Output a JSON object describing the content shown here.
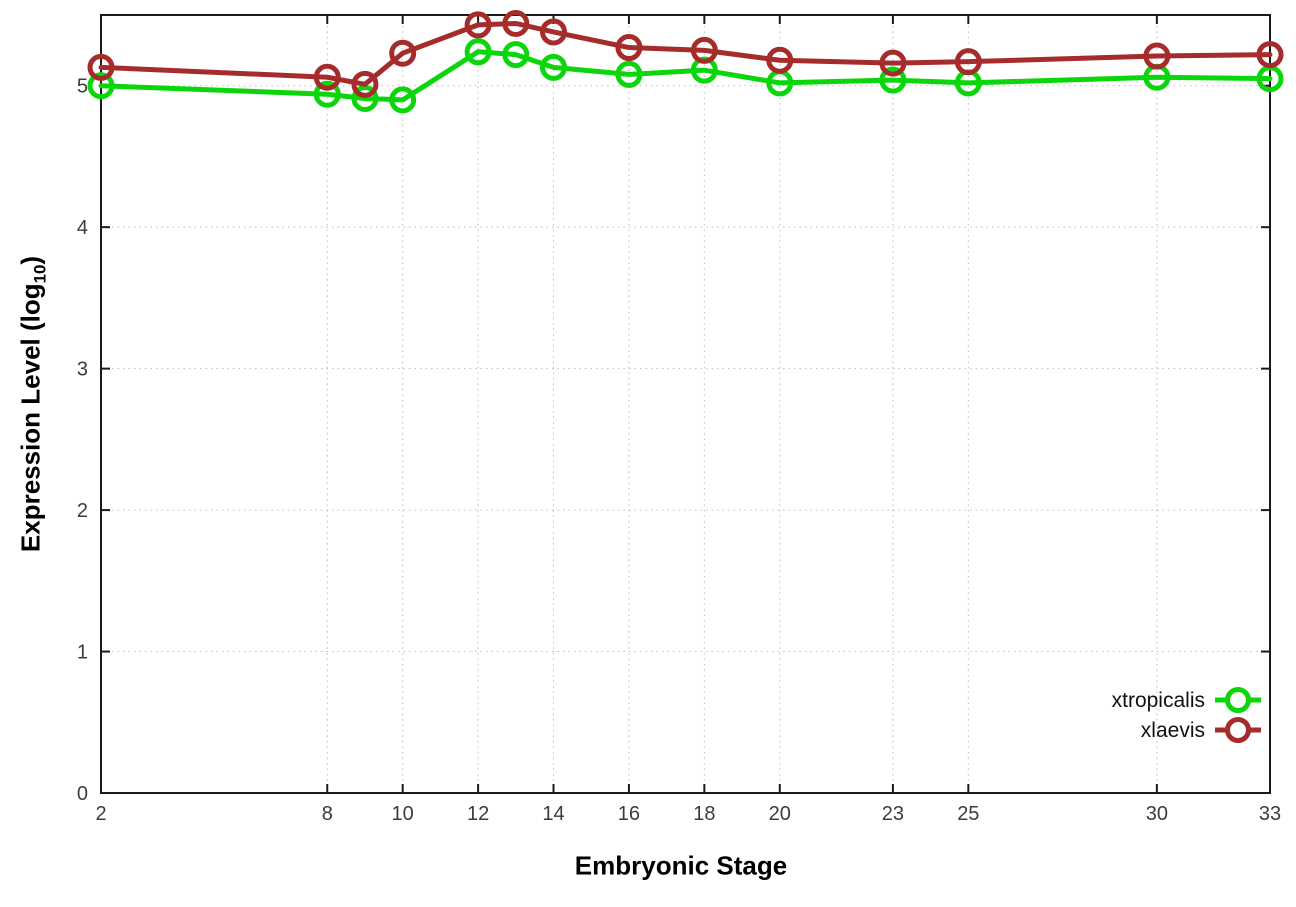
{
  "chart_data": {
    "type": "line",
    "title": "",
    "x": [
      2,
      8,
      9,
      10,
      12,
      13,
      14,
      16,
      18,
      20,
      23,
      25,
      30,
      33
    ],
    "series": [
      {
        "name": "xtropicalis",
        "color": "#0bd60b",
        "values": [
          5.0,
          4.94,
          4.91,
          4.9,
          5.24,
          5.22,
          5.13,
          5.08,
          5.11,
          5.02,
          5.04,
          5.02,
          5.06,
          5.05
        ]
      },
      {
        "name": "xlaevis",
        "color": "#a62c2c",
        "values": [
          5.13,
          5.06,
          5.01,
          5.23,
          5.43,
          5.44,
          5.38,
          5.27,
          5.25,
          5.18,
          5.16,
          5.17,
          5.21,
          5.22
        ]
      }
    ],
    "xlabel": "Embryonic Stage",
    "ylabel": "Expression Level (log10)",
    "ylabel_parts": {
      "pre": "Expression Level (log",
      "sub": "10",
      "post": ")"
    },
    "xticks": [
      2,
      8,
      10,
      12,
      14,
      16,
      18,
      20,
      23,
      25,
      30,
      33
    ],
    "yticks": [
      0,
      1,
      2,
      3,
      4,
      5
    ],
    "xlim": [
      2,
      33
    ],
    "ylim": [
      0,
      5.5
    ],
    "grid": true,
    "marker": "open-circle",
    "legend_position": "inside-right",
    "colors": {
      "grid": "#bdbdbd",
      "border": "#1a1a1a",
      "tick_label": "#3c3c3c",
      "background": "#ffffff"
    }
  }
}
